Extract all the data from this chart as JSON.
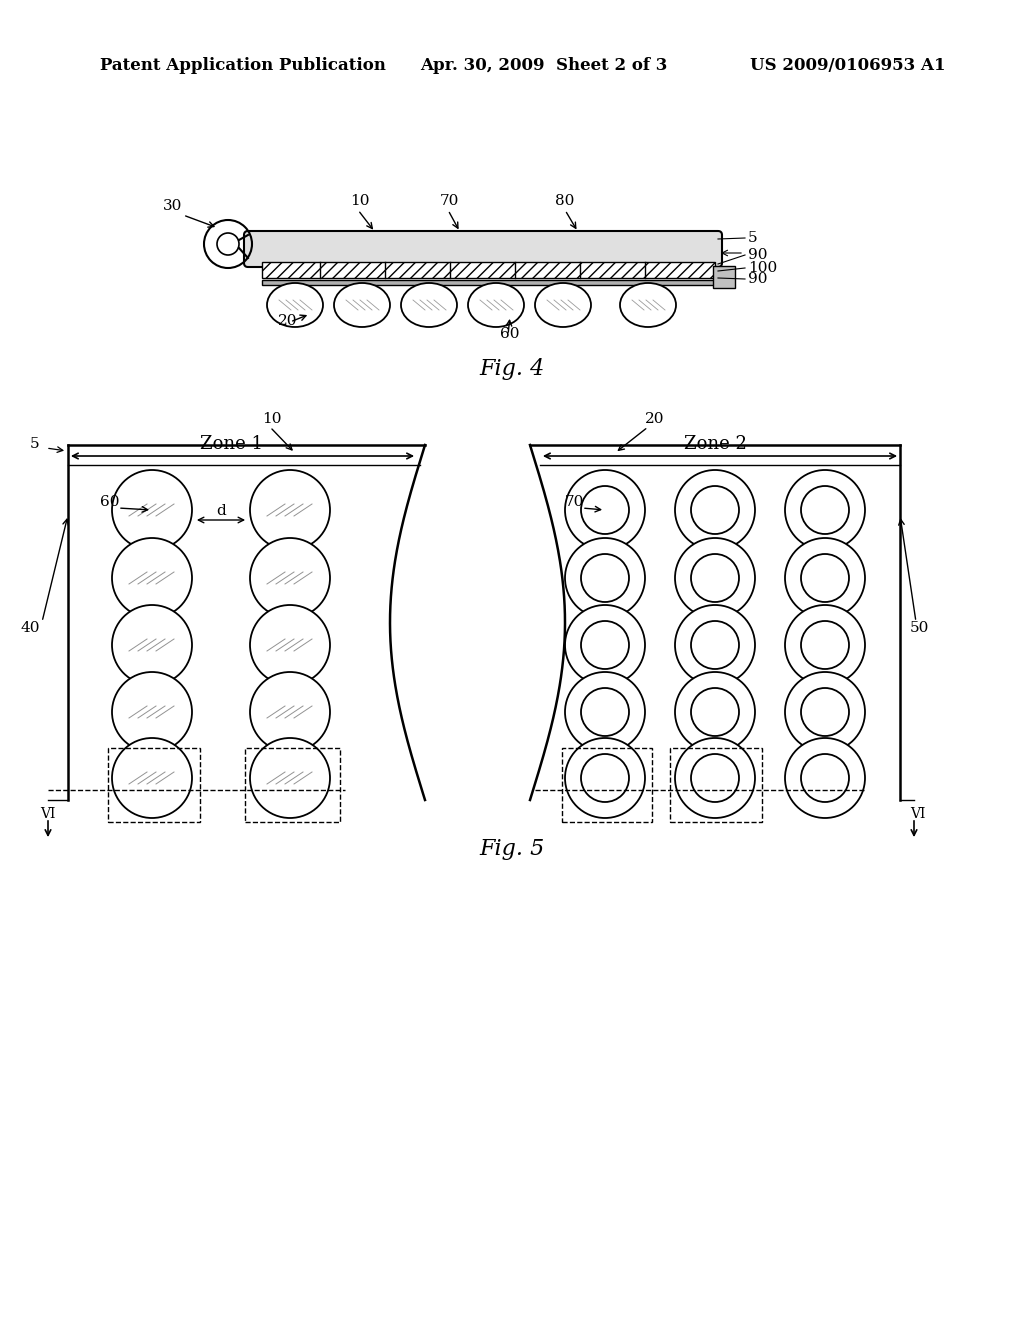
{
  "background_color": "#ffffff",
  "header_left": "Patent Application Publication",
  "header_mid": "Apr. 30, 2009  Sheet 2 of 3",
  "header_right": "US 2009/0106953 A1",
  "fig4_label": "Fig. 4",
  "fig5_label": "Fig. 5"
}
